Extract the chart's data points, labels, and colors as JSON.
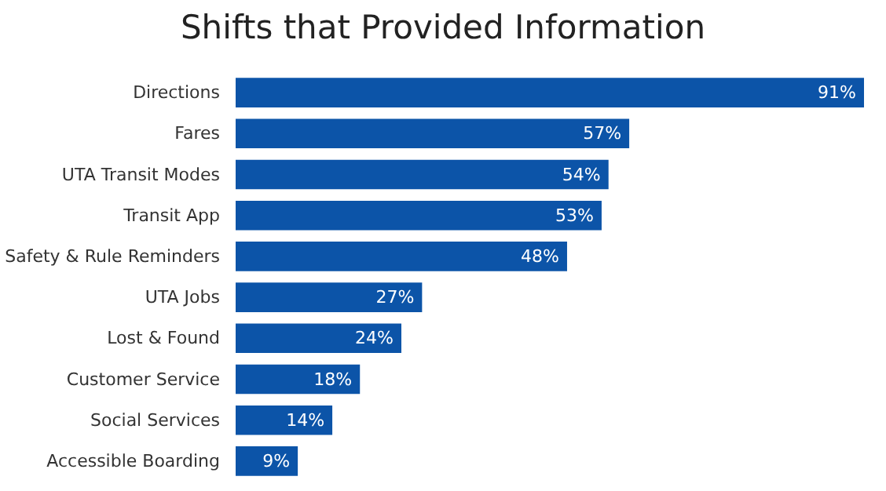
{
  "chart_data": {
    "type": "bar",
    "orientation": "horizontal",
    "title": "Shifts that Provided Information",
    "categories": [
      "Directions",
      "Fares",
      "UTA Transit Modes",
      "Transit App",
      "Safety & Rule Reminders",
      "UTA Jobs",
      "Lost & Found",
      "Customer Service",
      "Social Services",
      "Accessible Boarding"
    ],
    "values": [
      91,
      57,
      54,
      53,
      48,
      27,
      24,
      18,
      14,
      9
    ],
    "value_labels": [
      "91%",
      "57%",
      "54%",
      "53%",
      "48%",
      "27%",
      "24%",
      "18%",
      "14%",
      "9%"
    ],
    "color": "#0c54a8"
  }
}
